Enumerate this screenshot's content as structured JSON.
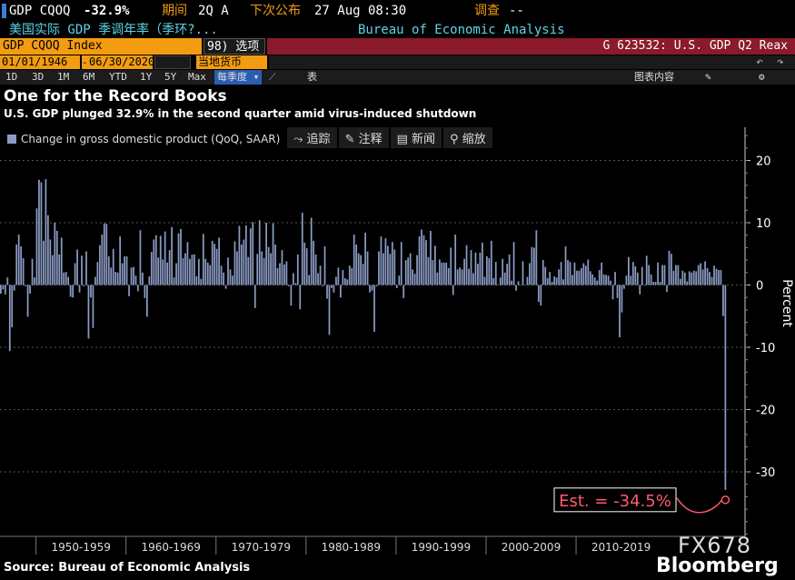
{
  "header": {
    "ticker": "GDP CQOQ",
    "value": "-32.9%",
    "period_label": "期间",
    "period": "2Q A",
    "next_release_label": "下次公布",
    "next_release": "27 Aug 08:30",
    "survey_label": "调查",
    "survey": "--",
    "description": "美国实际 GDP 季调年率（季环?...",
    "source_name": "Bureau of Economic Analysis"
  },
  "bar": {
    "ticker_box": "GDP CQOQ Index",
    "options": "98) 选项 ▾",
    "right_title": "G 623532: U.S. GDP Q2 Reax"
  },
  "dates": {
    "start": "01/01/1946",
    "end": "06/30/2020",
    "currency": "当地货币"
  },
  "toolbar": {
    "ranges": [
      "1D",
      "3D",
      "1M",
      "6M",
      "YTD",
      "1Y",
      "5Y",
      "Max"
    ],
    "frequency": "每季度 ▾",
    "table": "表",
    "chart_content": "图表内容"
  },
  "chart_tools": [
    "追踪",
    "注释",
    "新闻",
    "缩放"
  ],
  "chart_data": {
    "type": "bar",
    "title": "One for the Record Books",
    "subtitle": "U.S. GDP plunged 32.9% in the second quarter amid virus-induced shutdown",
    "ylabel": "Percent",
    "ylim": [
      -40,
      25
    ],
    "yticks": [
      20,
      10,
      0,
      -10,
      -20,
      -30
    ],
    "x_range": [
      "1946",
      "2020"
    ],
    "decade_labels": [
      "1950-1959",
      "1960-1969",
      "1970-1979",
      "1980-1989",
      "1990-1999",
      "2000-2009",
      "2010-2019"
    ],
    "series": [
      {
        "name": "Change in gross domestic product (QoQ, SAAR)",
        "color": "#8a9bc4"
      }
    ],
    "values": [
      -1.4,
      -0.7,
      -1.5,
      1.2,
      -10.6,
      -6.8,
      -0.9,
      6.5,
      8.1,
      6.2,
      4.3,
      -0.2,
      -5.1,
      -1.4,
      4.2,
      1.2,
      12.3,
      16.9,
      16.5,
      7.1,
      17.0,
      11.2,
      7.3,
      4.8,
      10.0,
      8.7,
      4.9,
      7.6,
      2.0,
      2.1,
      1.3,
      -1.9,
      -2.0,
      3.5,
      5.7,
      -1.2,
      4.7,
      -0.2,
      5.4,
      -8.6,
      -2.0,
      -6.9,
      1.3,
      3.7,
      6.4,
      8.1,
      9.9,
      9.8,
      4.6,
      2.8,
      5.8,
      2.1,
      2.0,
      7.8,
      3.5,
      4.6,
      4.6,
      -1.8,
      2.8,
      2.9,
      1.5,
      -1.0,
      8.8,
      2.0,
      -2.1,
      -5.1,
      1.4,
      5.3,
      7.3,
      8.0,
      4.4,
      7.9,
      4.1,
      8.6,
      3.6,
      5.6,
      9.3,
      1.2,
      3.5,
      8.3,
      9.0,
      4.3,
      5.1,
      6.9,
      4.2,
      4.9,
      4.9,
      1.4,
      4.2,
      1.0,
      8.2,
      4.2,
      3.6,
      3.2,
      7.1,
      6.6,
      5.8,
      7.6,
      3.1,
      2.0,
      -0.6,
      4.4,
      2.5,
      1.5,
      7.0,
      5.4,
      9.5,
      6.5,
      7.3,
      9.6,
      4.5,
      9.1,
      10.1,
      -3.7,
      5.0,
      10.4,
      5.4,
      4.3,
      10.0,
      6.1,
      5.1,
      9.9,
      6.5,
      2.7,
      3.5,
      5.6,
      3.3,
      3.8,
      -0.2,
      -3.3,
      1.9,
      0.3,
      4.9,
      -3.9,
      11.6,
      6.8,
      5.9,
      1.6,
      10.8,
      7.1,
      4.9,
      1.9,
      3.1,
      -0.2,
      6.2,
      -2.2,
      -8.0,
      -0.5,
      -1.2,
      1.3,
      2.8,
      -2.0,
      2.4,
      1.1,
      0.9,
      3.1,
      2.7,
      8.1,
      6.5,
      5.1,
      4.8,
      3.4,
      8.4,
      5.4,
      -1.2,
      -0.9,
      -7.5,
      -0.2,
      5.4,
      7.8,
      5.1,
      7.5,
      6.3,
      5.0,
      6.9,
      5.7,
      -0.5,
      1.5,
      6.9,
      -2.1,
      4.0,
      4.4,
      5.1,
      2.5,
      1.8,
      4.8,
      7.8,
      8.9,
      8.0,
      7.2,
      4.5,
      8.7,
      4.0,
      6.3,
      2.0,
      4.1,
      3.6,
      3.6,
      3.6,
      2.7,
      6.0,
      -1.6,
      8.1,
      2.5,
      2.8,
      2.5,
      4.2,
      6.4,
      2.6,
      5.6,
      1.9,
      5.2,
      3.4,
      5.2,
      6.8,
      1.3,
      4.6,
      4.3,
      7.1,
      1.1,
      3.7,
      0.1,
      1.2,
      4.2,
      2.0,
      3.4,
      4.9,
      0.7,
      6.9,
      -0.9,
      0.6,
      0.0,
      3.8,
      0.0,
      1.3,
      3.5,
      6.1,
      6.0,
      8.8,
      -2.7,
      -3.3,
      4.0,
      2.9,
      1.1,
      2.1,
      0.5,
      1.4,
      1.2,
      2.5,
      3.7,
      0.9,
      6.2,
      4.0,
      3.7,
      1.6,
      3.6,
      2.3,
      2.3,
      2.7,
      3.5,
      3.1,
      4.1,
      2.2,
      1.7,
      1.2,
      0.7,
      2.4,
      3.6,
      1.7,
      1.6,
      1.5,
      0.7,
      -2.3,
      2.1,
      -2.1,
      -8.4,
      -4.4,
      -0.6,
      1.5,
      4.5,
      1.5,
      3.7,
      3.0,
      2.0,
      -1.5,
      2.9,
      -0.1,
      4.7,
      3.2,
      1.7,
      0.5,
      0.5,
      3.6,
      0.5,
      3.2,
      3.2,
      -1.1,
      5.5,
      5.0,
      2.3,
      3.2,
      3.2,
      1.0,
      2.3,
      2.0,
      0.6,
      2.2,
      2.0,
      2.3,
      2.2,
      3.2,
      3.5,
      2.5,
      3.8,
      2.7,
      2.1,
      1.3,
      3.1,
      2.6,
      2.4,
      2.4,
      -5.0,
      -32.9
    ],
    "estimate_label": "Est. = -34.5%",
    "estimate_value": -34.5,
    "annotation_color": "#ff5a6e"
  },
  "footer": {
    "source": "Source: Bureau of Economic Analysis",
    "brand": "Bloomberg",
    "watermark": "FX678"
  }
}
